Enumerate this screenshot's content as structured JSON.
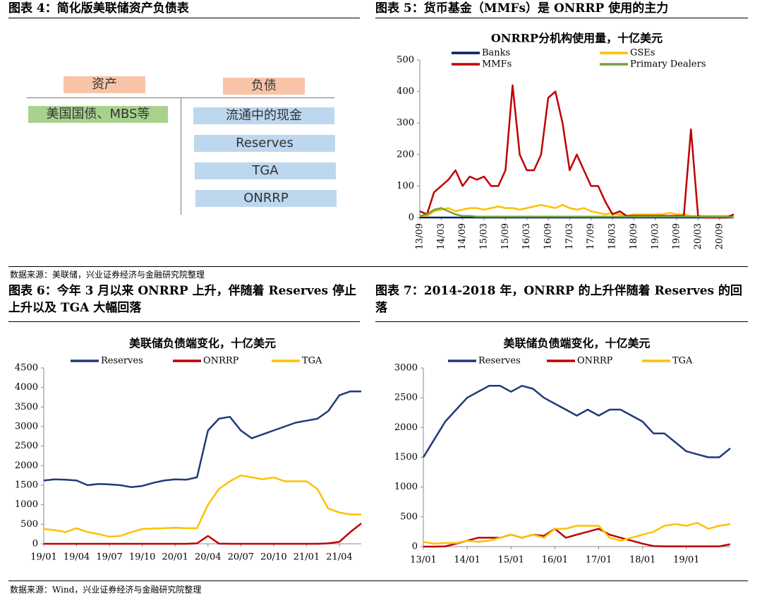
{
  "captions": [
    "图表 4：简化版美联储资产负债表",
    "图表 5：货币基金（MMFs）是 ONRRP 使用的主力",
    "图表 6：今年 3 月以来 ONRRP 上升，伴随着 Reserves 停止上升以及 TGA 大幅回落",
    "图表 7：2014-2018 年，ONRRP 的上升伴随着 Reserves 的回落"
  ],
  "sources": [
    "数据来源：美联储，兴业证券经济与金融研究院整理",
    "数据来源：Wind，兴业证券经济与金融研究院整理"
  ],
  "diagram": {
    "assets_header": "资产",
    "liabilities_header": "负债",
    "assets": [
      "美国国债、MBS等"
    ],
    "liabilities": [
      "流通中的现金",
      "Reserves",
      "TGA",
      "ONRRP"
    ]
  },
  "chart_data": [
    {
      "type": "line",
      "title": "ONRRP分机构使用量，十亿美元",
      "x": [
        "13/09",
        "13/11",
        "14/01",
        "14/03",
        "14/05",
        "14/07",
        "14/09",
        "14/11",
        "15/01",
        "15/03",
        "15/05",
        "15/07",
        "15/09",
        "15/11",
        "16/01",
        "16/03",
        "16/05",
        "16/07",
        "16/09",
        "16/11",
        "17/01",
        "17/03",
        "17/05",
        "17/07",
        "17/09",
        "17/11",
        "18/01",
        "18/03",
        "18/05",
        "18/07",
        "18/09",
        "18/11",
        "19/01",
        "19/03",
        "19/05",
        "19/07",
        "19/09",
        "19/11",
        "20/01",
        "20/03",
        "20/05",
        "20/07",
        "20/09",
        "20/11",
        "21/01"
      ],
      "xticks": [
        "13/09",
        "14/03",
        "14/09",
        "15/03",
        "15/09",
        "16/03",
        "16/09",
        "17/03",
        "17/09",
        "18/03",
        "18/09",
        "19/03",
        "19/09",
        "20/03",
        "20/09"
      ],
      "ylim": [
        0,
        500
      ],
      "yticks": [
        0,
        100,
        200,
        300,
        400,
        500
      ],
      "series": [
        {
          "name": "Banks",
          "color": "#002060",
          "values": [
            0,
            0,
            0,
            0,
            0,
            0,
            0,
            0,
            0,
            0,
            0,
            0,
            0,
            0,
            0,
            0,
            0,
            0,
            0,
            0,
            0,
            0,
            0,
            0,
            0,
            0,
            0,
            0,
            0,
            0,
            0,
            0,
            0,
            0,
            0,
            0,
            0,
            0,
            0,
            0,
            0,
            0,
            0,
            0,
            0
          ]
        },
        {
          "name": "GSEs",
          "color": "#ffc000",
          "values": [
            5,
            5,
            20,
            25,
            30,
            20,
            25,
            30,
            30,
            25,
            30,
            35,
            30,
            30,
            25,
            30,
            35,
            40,
            35,
            30,
            40,
            30,
            25,
            30,
            20,
            15,
            10,
            15,
            10,
            5,
            10,
            10,
            10,
            10,
            10,
            15,
            10,
            10,
            5,
            5,
            5,
            5,
            5,
            5,
            5
          ]
        },
        {
          "name": "MMFs",
          "color": "#c00000",
          "values": [
            20,
            10,
            80,
            100,
            120,
            150,
            100,
            130,
            120,
            130,
            100,
            100,
            150,
            420,
            200,
            150,
            150,
            200,
            380,
            400,
            300,
            150,
            200,
            150,
            100,
            100,
            50,
            10,
            20,
            5,
            5,
            5,
            5,
            5,
            5,
            5,
            5,
            5,
            280,
            5,
            0,
            0,
            0,
            0,
            10
          ]
        },
        {
          "name": "Primary Dealers",
          "color": "#70a040",
          "values": [
            5,
            10,
            25,
            30,
            20,
            10,
            5,
            5,
            3,
            3,
            3,
            3,
            3,
            3,
            3,
            3,
            3,
            3,
            3,
            3,
            3,
            3,
            3,
            3,
            3,
            3,
            3,
            3,
            3,
            3,
            3,
            3,
            3,
            3,
            3,
            3,
            3,
            3,
            3,
            3,
            3,
            3,
            3,
            3,
            0
          ]
        }
      ]
    },
    {
      "type": "line",
      "title": "美联储负债端变化，十亿美元",
      "x": [
        "19/01",
        "19/02",
        "19/03",
        "19/04",
        "19/05",
        "19/06",
        "19/07",
        "19/08",
        "19/09",
        "19/10",
        "19/11",
        "19/12",
        "20/01",
        "20/02",
        "20/03",
        "20/04",
        "20/05",
        "20/06",
        "20/07",
        "20/08",
        "20/09",
        "20/10",
        "20/11",
        "20/12",
        "21/01",
        "21/02",
        "21/03",
        "21/04",
        "21/05",
        "21/06"
      ],
      "xticks": [
        "19/01",
        "19/04",
        "19/07",
        "19/10",
        "20/01",
        "20/04",
        "20/07",
        "20/10",
        "21/01",
        "21/04"
      ],
      "ylim": [
        0,
        4500
      ],
      "yticks": [
        0,
        500,
        1000,
        1500,
        2000,
        2500,
        3000,
        3500,
        4000,
        4500
      ],
      "series": [
        {
          "name": "Reserves",
          "color": "#1f3a7a",
          "values": [
            1620,
            1650,
            1640,
            1620,
            1500,
            1530,
            1520,
            1500,
            1450,
            1480,
            1560,
            1620,
            1650,
            1640,
            1700,
            2900,
            3200,
            3250,
            2900,
            2700,
            2800,
            2900,
            3000,
            3100,
            3150,
            3200,
            3400,
            3800,
            3900,
            3900
          ]
        },
        {
          "name": "ONRRP",
          "color": "#c00000",
          "values": [
            0,
            0,
            0,
            0,
            0,
            0,
            0,
            0,
            0,
            0,
            0,
            0,
            0,
            0,
            10,
            200,
            5,
            0,
            0,
            0,
            0,
            0,
            0,
            0,
            0,
            0,
            10,
            50,
            300,
            520
          ]
        },
        {
          "name": "TGA",
          "color": "#ffc000",
          "values": [
            380,
            350,
            300,
            400,
            300,
            250,
            180,
            200,
            300,
            380,
            390,
            400,
            410,
            400,
            400,
            1000,
            1400,
            1600,
            1750,
            1700,
            1650,
            1700,
            1600,
            1600,
            1600,
            1400,
            900,
            800,
            750,
            750
          ]
        }
      ]
    },
    {
      "type": "line",
      "title": "美联储负债端变化，十亿美元",
      "x": [
        "13/01",
        "13/04",
        "13/07",
        "13/10",
        "14/01",
        "14/04",
        "14/07",
        "14/10",
        "15/01",
        "15/04",
        "15/07",
        "15/10",
        "16/01",
        "16/04",
        "16/07",
        "16/10",
        "17/01",
        "17/04",
        "17/07",
        "17/10",
        "18/01",
        "18/04",
        "18/07",
        "18/10",
        "19/01",
        "19/04",
        "19/07",
        "19/10",
        "20/01"
      ],
      "xticks": [
        "13/01",
        "14/01",
        "15/01",
        "16/01",
        "17/01",
        "18/01",
        "19/01"
      ],
      "ylim": [
        0,
        3000
      ],
      "yticks": [
        0,
        500,
        1000,
        1500,
        2000,
        2500,
        3000
      ],
      "series": [
        {
          "name": "Reserves",
          "color": "#1f3a7a",
          "values": [
            1500,
            1800,
            2100,
            2300,
            2500,
            2600,
            2700,
            2700,
            2600,
            2700,
            2650,
            2500,
            2400,
            2300,
            2200,
            2300,
            2200,
            2300,
            2300,
            2200,
            2100,
            1900,
            1900,
            1750,
            1600,
            1550,
            1500,
            1500,
            1650
          ]
        },
        {
          "name": "ONRRP",
          "color": "#c00000",
          "values": [
            0,
            0,
            5,
            50,
            100,
            150,
            150,
            150,
            200,
            150,
            200,
            180,
            300,
            150,
            200,
            250,
            300,
            200,
            150,
            100,
            50,
            10,
            5,
            5,
            5,
            5,
            5,
            5,
            40
          ]
        },
        {
          "name": "TGA",
          "color": "#ffc000",
          "values": [
            80,
            50,
            60,
            60,
            100,
            80,
            100,
            150,
            200,
            150,
            200,
            150,
            300,
            300,
            350,
            350,
            350,
            150,
            100,
            150,
            200,
            250,
            350,
            380,
            350,
            400,
            300,
            350,
            380
          ]
        }
      ]
    }
  ]
}
